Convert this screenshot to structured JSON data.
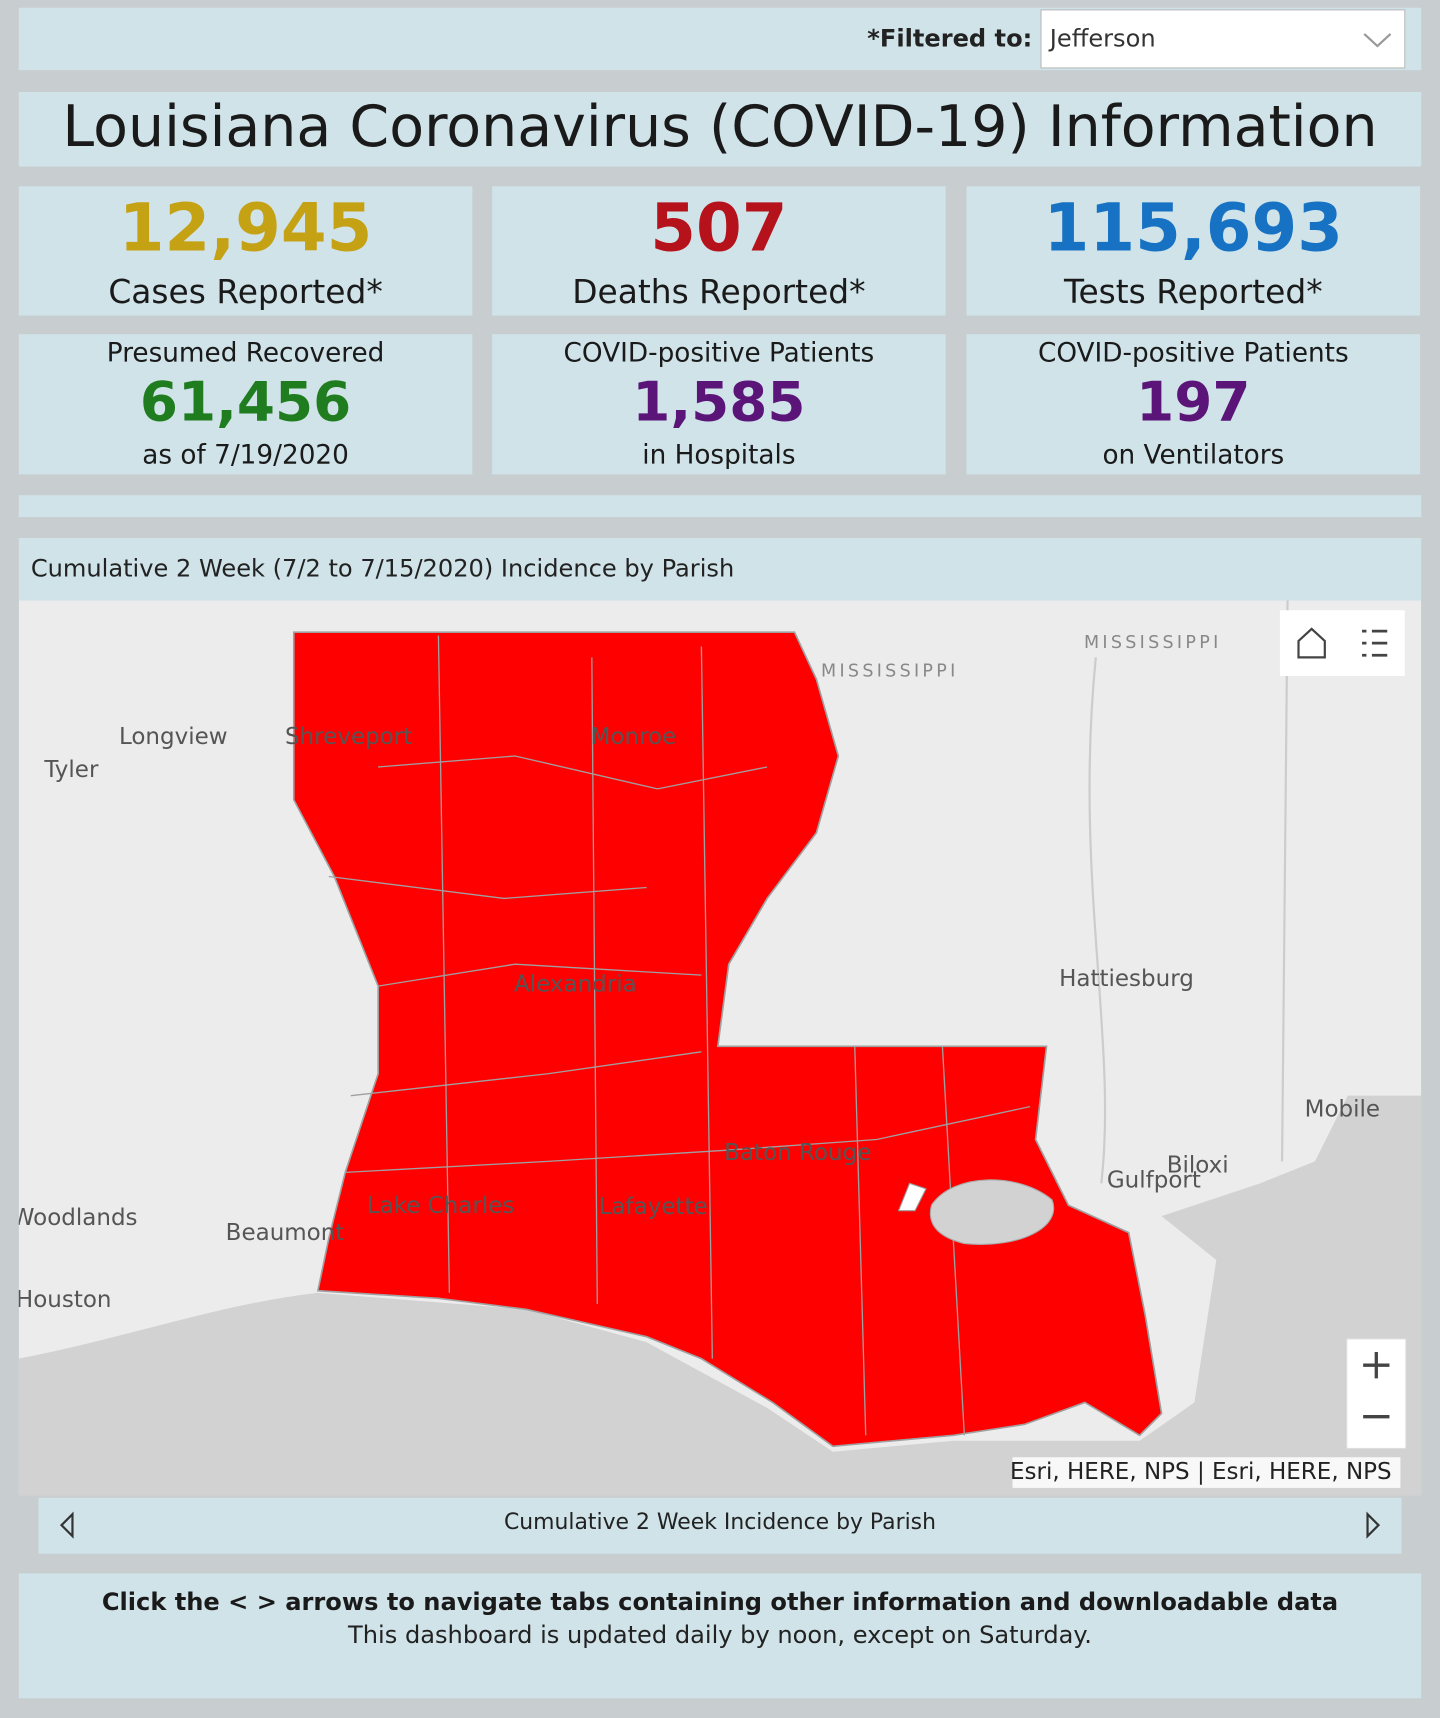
{
  "filter": {
    "label": "*Filtered to:",
    "value": "Jefferson"
  },
  "header": {
    "title": "Louisiana Coronavirus (COVID-19) Information"
  },
  "stats": [
    {
      "value": "12,945",
      "label": "Cases Reported*"
    },
    {
      "value": "507",
      "label": "Deaths Reported*"
    },
    {
      "value": "115,693",
      "label": "Tests Reported*"
    },
    {
      "top": "Presumed Recovered",
      "value": "61,456",
      "bottom": "as of 7/19/2020"
    },
    {
      "top": "COVID-positive Patients",
      "value": "1,585",
      "bottom": "in Hospitals"
    },
    {
      "top": "COVID-positive Patients",
      "value": "197",
      "bottom": "on Ventilators"
    }
  ],
  "map": {
    "title": "Cumulative 2 Week (7/2 to 7/15/2020) Incidence by Parish",
    "places": [
      "MISSISSIPPI",
      "MISSISSIPPI",
      "Longview",
      "Tyler",
      "Shreveport",
      "Monroe",
      "Alexandria",
      "Hattiesburg",
      "Mobile",
      "Gulfport",
      "Biloxi",
      "Woodlands",
      "Beaumont",
      "Houston",
      "Lake Charles",
      "Lafayette",
      "Baton Rouge"
    ],
    "attribution": "Esri, HERE, NPS | Esri, HERE, NPS"
  },
  "tab": {
    "label": "Cumulative 2 Week Incidence by Parish"
  },
  "footer": {
    "instruction": "Click the < > arrows to navigate tabs containing other information and downloadable data",
    "note": "This dashboard is updated daily by noon, except on Saturday."
  }
}
